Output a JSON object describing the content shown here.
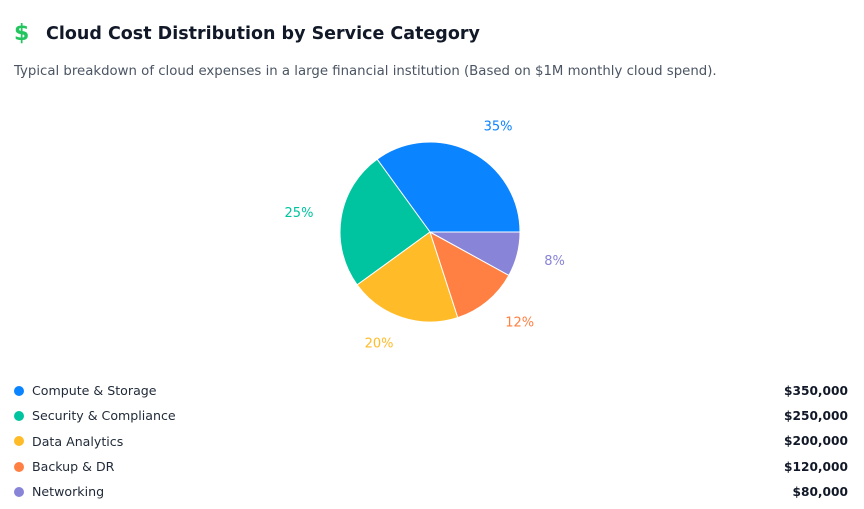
{
  "header": {
    "icon": "dollar-sign-icon",
    "icon_color": "#22c55e",
    "icon_glyph": "$",
    "title": "Cloud Cost Distribution by Service Category",
    "subtitle": "Typical breakdown of cloud expenses in a large financial institution (Based on $1M monthly cloud spend)."
  },
  "chart_data": {
    "type": "pie",
    "title": "",
    "categories": [
      "Compute & Storage",
      "Security & Compliance",
      "Data Analytics",
      "Backup & DR",
      "Networking"
    ],
    "values": [
      350000,
      250000,
      200000,
      120000,
      80000
    ],
    "percent_labels": [
      "35%",
      "25%",
      "20%",
      "12%",
      "8%"
    ],
    "colors": [
      "#0a84ff",
      "#00c49f",
      "#ffbb28",
      "#ff8042",
      "#8884d8"
    ],
    "start_angle_deg": 0,
    "direction": "counterclockwise",
    "legend_position": "bottom"
  },
  "legend": {
    "items": [
      {
        "label": "Compute & Storage",
        "value": "$350,000",
        "color": "#0a84ff"
      },
      {
        "label": "Security & Compliance",
        "value": "$250,000",
        "color": "#00c49f"
      },
      {
        "label": "Data Analytics",
        "value": "$200,000",
        "color": "#ffbb28"
      },
      {
        "label": "Backup & DR",
        "value": "$120,000",
        "color": "#ff8042"
      },
      {
        "label": "Networking",
        "value": "$80,000",
        "color": "#8884d8"
      }
    ]
  }
}
